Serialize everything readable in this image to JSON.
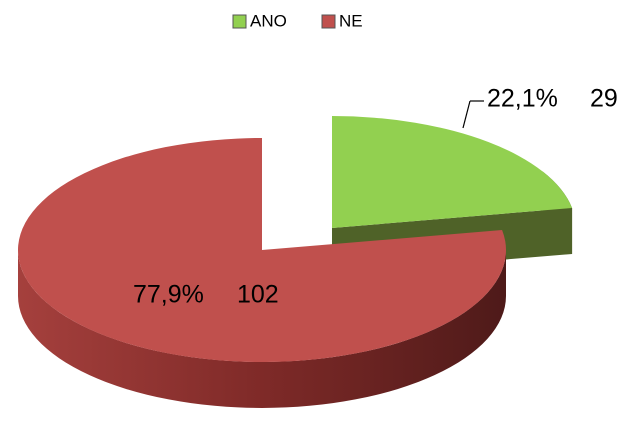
{
  "chart_data": {
    "type": "pie",
    "categories": [
      "ANO",
      "NE"
    ],
    "values": [
      29,
      102
    ],
    "percent_labels": [
      "22,1%",
      "77,9%"
    ],
    "series": [
      {
        "name": "ANO",
        "color": "#92d050"
      },
      {
        "name": "NE",
        "color": "#c0504d"
      }
    ],
    "legend": "top"
  }
}
